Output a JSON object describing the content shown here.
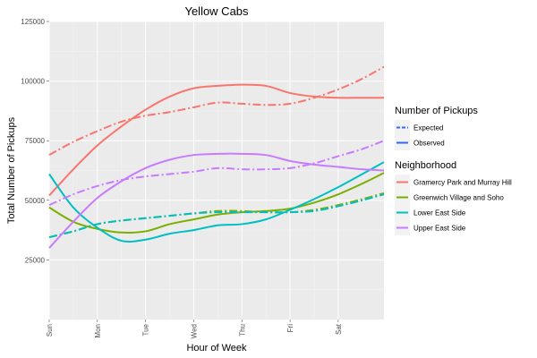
{
  "chart_data": {
    "type": "line",
    "title": "Yellow Cabs",
    "xlabel": "Hour of Week",
    "ylabel": "Total Number of Pickups",
    "x_ticks": [
      "Sun",
      "Mon",
      "Tue",
      "Wed",
      "Thu",
      "Fri",
      "Sat"
    ],
    "x_range": [
      0,
      6.95
    ],
    "ylim": [
      0,
      125000
    ],
    "y_ticks": [
      25000,
      50000,
      75000,
      100000,
      125000
    ],
    "y_tick_labels": [
      "25000",
      "50000",
      "75000",
      "100000",
      "125000"
    ],
    "grid": true,
    "legend_position": "right",
    "linetype_legend": {
      "title": "Number of Pickups",
      "items": [
        {
          "label": "Expected",
          "dash": "dashed"
        },
        {
          "label": "Observed",
          "dash": "solid"
        }
      ],
      "key_color": "#3366FF"
    },
    "color_legend": {
      "title": "Neighborhood",
      "items": [
        {
          "label": "Gramercy Park and Murray Hill",
          "color": "#F8766D"
        },
        {
          "label": "Greenwich Village and Soho",
          "color": "#7CAE00"
        },
        {
          "label": "Lower East Side",
          "color": "#00BFC4"
        },
        {
          "label": "Upper East Side",
          "color": "#C77CFF"
        }
      ]
    },
    "series": [
      {
        "name": "Gramercy Park and Murray Hill",
        "linetype": "Observed",
        "color": "#F8766D",
        "x": [
          0,
          0.5,
          1,
          1.5,
          2,
          2.5,
          3,
          3.5,
          4,
          4.5,
          5,
          5.5,
          6,
          6.5,
          6.95
        ],
        "y": [
          52000,
          63000,
          73000,
          81000,
          88000,
          93500,
          97000,
          98000,
          98500,
          98000,
          95000,
          93500,
          93000,
          93000,
          93000
        ]
      },
      {
        "name": "Gramercy Park and Murray Hill",
        "linetype": "Expected",
        "color": "#F8766D",
        "x": [
          0,
          0.5,
          1,
          1.5,
          2,
          2.5,
          3,
          3.5,
          4,
          4.5,
          5,
          5.5,
          6,
          6.5,
          6.95
        ],
        "y": [
          69000,
          74500,
          79000,
          83000,
          85500,
          87000,
          89000,
          91000,
          90500,
          90000,
          90500,
          93000,
          96500,
          101000,
          106000
        ]
      },
      {
        "name": "Greenwich Village and Soho",
        "linetype": "Observed",
        "color": "#7CAE00",
        "x": [
          0,
          0.5,
          1,
          1.5,
          2,
          2.5,
          3,
          3.5,
          4,
          4.5,
          5,
          5.5,
          6,
          6.5,
          6.95
        ],
        "y": [
          47000,
          41000,
          38000,
          36500,
          37000,
          40000,
          42000,
          44000,
          45000,
          45500,
          46500,
          49000,
          52500,
          57000,
          61500
        ]
      },
      {
        "name": "Greenwich Village and Soho",
        "linetype": "Expected",
        "color": "#7CAE00",
        "x": [
          0,
          0.5,
          1,
          1.5,
          2,
          2.5,
          3,
          3.5,
          4,
          4.5,
          5,
          5.5,
          6,
          6.5,
          6.95
        ],
        "y": [
          34500,
          37000,
          40000,
          41500,
          42500,
          43500,
          44500,
          45500,
          45500,
          45000,
          45000,
          46000,
          48000,
          50500,
          53000
        ]
      },
      {
        "name": "Lower East Side",
        "linetype": "Observed",
        "color": "#00BFC4",
        "x": [
          0,
          0.5,
          1,
          1.5,
          2,
          2.5,
          3,
          3.5,
          4,
          4.5,
          5,
          5.5,
          6,
          6.5,
          6.95
        ],
        "y": [
          61000,
          47000,
          38500,
          33000,
          33500,
          36000,
          37500,
          39500,
          40000,
          42000,
          46000,
          50500,
          55500,
          61000,
          66000
        ]
      },
      {
        "name": "Lower East Side",
        "linetype": "Expected",
        "color": "#00BFC4",
        "x": [
          0,
          0.5,
          1,
          1.5,
          2,
          2.5,
          3,
          3.5,
          4,
          4.5,
          5,
          5.5,
          6,
          6.5,
          6.95
        ],
        "y": [
          34500,
          37000,
          40000,
          41500,
          42500,
          43500,
          44500,
          45000,
          45000,
          45000,
          45000,
          45500,
          47500,
          50000,
          52500
        ]
      },
      {
        "name": "Upper East Side",
        "linetype": "Observed",
        "color": "#C77CFF",
        "x": [
          0,
          0.5,
          1,
          1.5,
          2,
          2.5,
          3,
          3.5,
          4,
          4.5,
          5,
          5.5,
          6,
          6.5,
          6.95
        ],
        "y": [
          30000,
          41000,
          51000,
          58000,
          63500,
          67000,
          69000,
          69500,
          69500,
          69000,
          66500,
          65000,
          64000,
          63000,
          62500
        ]
      },
      {
        "name": "Upper East Side",
        "linetype": "Expected",
        "color": "#C77CFF",
        "x": [
          0,
          0.5,
          1,
          1.5,
          2,
          2.5,
          3,
          3.5,
          4,
          4.5,
          5,
          5.5,
          6,
          6.5,
          6.95
        ],
        "y": [
          48000,
          52500,
          56000,
          58500,
          60000,
          61000,
          62000,
          63500,
          63000,
          63000,
          63500,
          65500,
          68500,
          71500,
          75000
        ]
      }
    ]
  }
}
